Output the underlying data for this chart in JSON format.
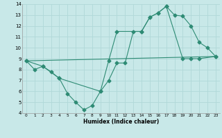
{
  "xlabel": "Humidex (Indice chaleur)",
  "xlim": [
    -0.5,
    23.5
  ],
  "ylim": [
    4,
    14
  ],
  "xticks": [
    0,
    1,
    2,
    3,
    4,
    5,
    6,
    7,
    8,
    9,
    10,
    11,
    12,
    13,
    14,
    15,
    16,
    17,
    18,
    19,
    20,
    21,
    22,
    23
  ],
  "yticks": [
    4,
    5,
    6,
    7,
    8,
    9,
    10,
    11,
    12,
    13,
    14
  ],
  "line_color": "#2e8b74",
  "bg_color": "#c8e8e8",
  "grid_color": "#b0d8d8",
  "line1_x": [
    0,
    1,
    2,
    3,
    4,
    5,
    6,
    7,
    8,
    9,
    10,
    11,
    12,
    13,
    14,
    15,
    16,
    17,
    18,
    19,
    20,
    21,
    22,
    23
  ],
  "line1_y": [
    8.8,
    8.0,
    8.3,
    7.8,
    7.2,
    5.8,
    5.0,
    4.3,
    4.7,
    6.0,
    7.0,
    8.6,
    8.6,
    11.5,
    11.5,
    12.8,
    13.2,
    13.8,
    13.0,
    12.9,
    12.0,
    10.5,
    10.0,
    9.2
  ],
  "line2_x": [
    0,
    2,
    4,
    9,
    10,
    11,
    14,
    15,
    16,
    17,
    19,
    20,
    21,
    23
  ],
  "line2_y": [
    8.8,
    8.3,
    7.2,
    6.0,
    8.8,
    11.5,
    11.5,
    12.8,
    13.2,
    13.8,
    9.0,
    9.0,
    9.0,
    9.2
  ],
  "line3_x": [
    0,
    23
  ],
  "line3_y": [
    8.8,
    9.2
  ]
}
